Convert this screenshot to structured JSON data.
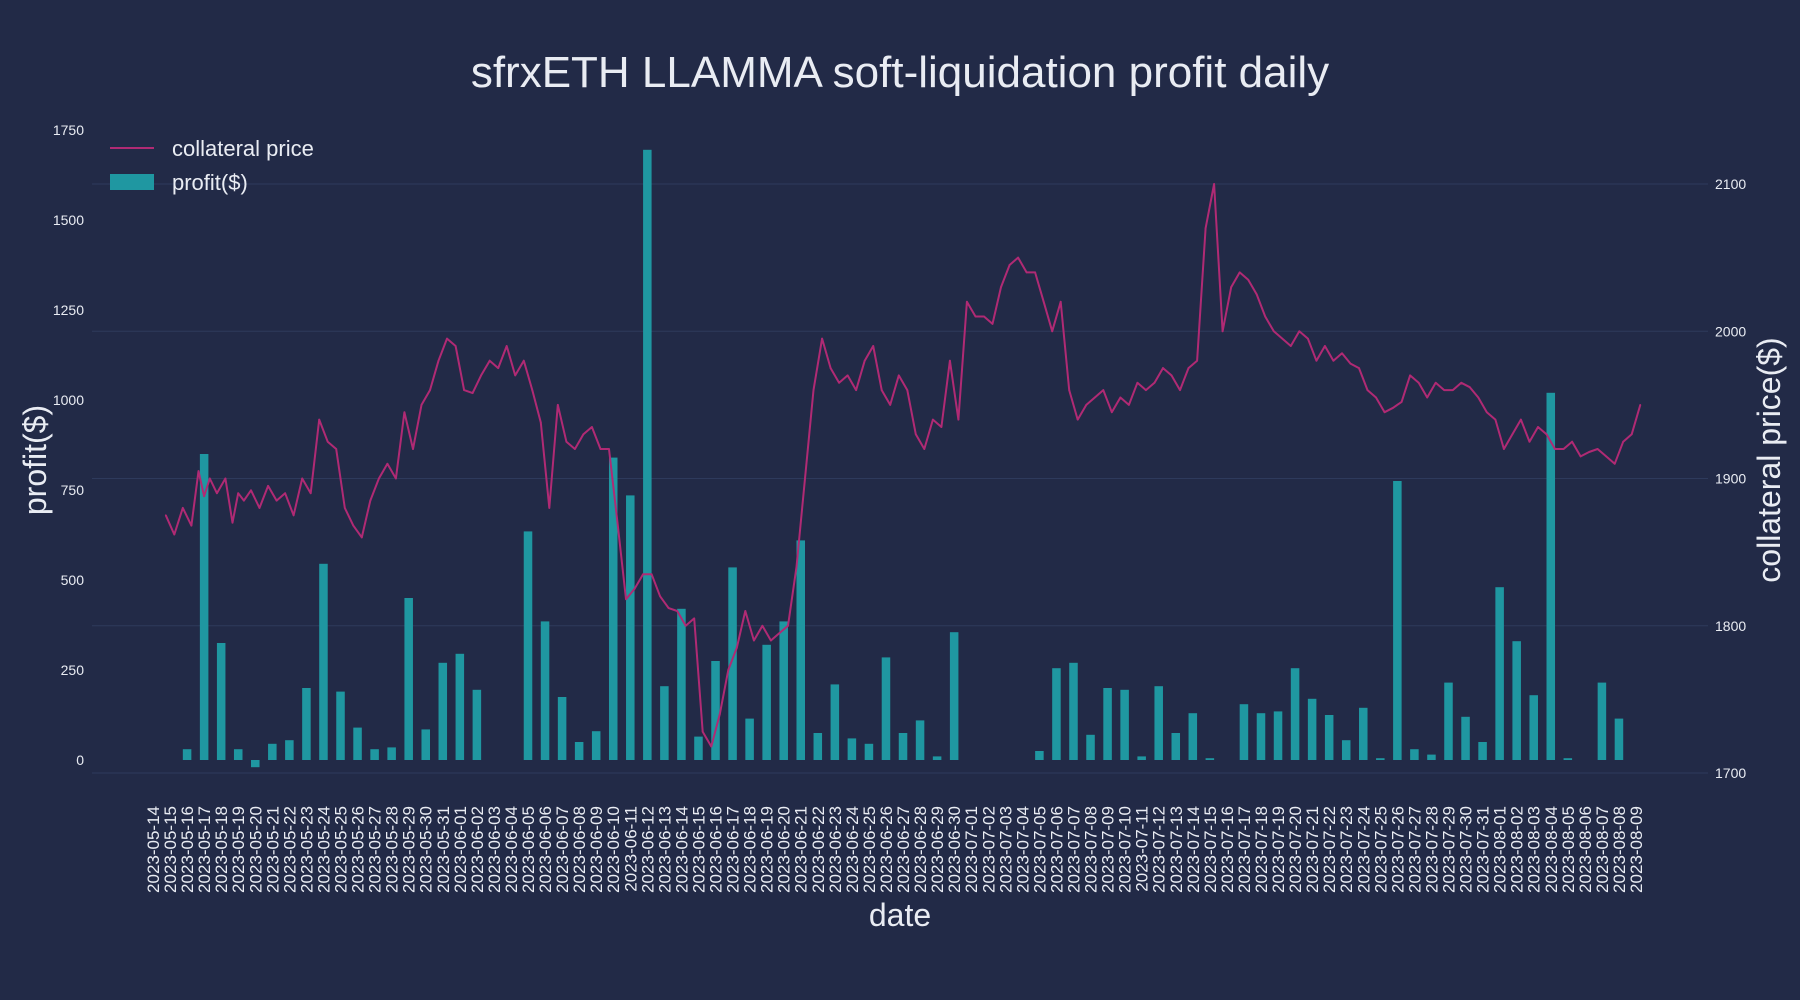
{
  "chart_data": {
    "type": "bar+line",
    "title": "sfrxETH LLAMMA soft-liquidation profit daily",
    "xlabel": "date",
    "ylabel_left": "profit($)",
    "ylabel_right": "collateral price($)",
    "ylim_left": [
      -20,
      1750
    ],
    "ylim_right": [
      1700,
      2150
    ],
    "yticks_left": [
      0,
      250,
      500,
      750,
      1000,
      1250,
      1500,
      1750
    ],
    "yticks_right": [
      1700,
      1800,
      1900,
      2000,
      2100
    ],
    "grid": "horizontal",
    "legend_position": "top-left",
    "colors": {
      "background": "#222a47",
      "bar": "#1f97a1",
      "line": "#b02a74",
      "grid": "#2e3a5c",
      "text": "#e9ecf3"
    },
    "categories": [
      "2023-05-14",
      "2023-05-15",
      "2023-05-16",
      "2023-05-17",
      "2023-05-18",
      "2023-05-19",
      "2023-05-20",
      "2023-05-21",
      "2023-05-22",
      "2023-05-23",
      "2023-05-24",
      "2023-05-25",
      "2023-05-26",
      "2023-05-27",
      "2023-05-28",
      "2023-05-29",
      "2023-05-30",
      "2023-05-31",
      "2023-06-01",
      "2023-06-02",
      "2023-06-03",
      "2023-06-04",
      "2023-06-05",
      "2023-06-06",
      "2023-06-07",
      "2023-06-08",
      "2023-06-09",
      "2023-06-10",
      "2023-06-11",
      "2023-06-12",
      "2023-06-13",
      "2023-06-14",
      "2023-06-15",
      "2023-06-16",
      "2023-06-17",
      "2023-06-18",
      "2023-06-19",
      "2023-06-20",
      "2023-06-21",
      "2023-06-22",
      "2023-06-23",
      "2023-06-24",
      "2023-06-25",
      "2023-06-26",
      "2023-06-27",
      "2023-06-28",
      "2023-06-29",
      "2023-06-30",
      "2023-07-01",
      "2023-07-02",
      "2023-07-03",
      "2023-07-04",
      "2023-07-05",
      "2023-07-06",
      "2023-07-07",
      "2023-07-08",
      "2023-07-09",
      "2023-07-10",
      "2023-07-11",
      "2023-07-12",
      "2023-07-13",
      "2023-07-14",
      "2023-07-15",
      "2023-07-16",
      "2023-07-17",
      "2023-07-18",
      "2023-07-19",
      "2023-07-20",
      "2023-07-21",
      "2023-07-22",
      "2023-07-23",
      "2023-07-24",
      "2023-07-25",
      "2023-07-26",
      "2023-07-27",
      "2023-07-28",
      "2023-07-29",
      "2023-07-30",
      "2023-07-31",
      "2023-08-01",
      "2023-08-02",
      "2023-08-03",
      "2023-08-04",
      "2023-08-05",
      "2023-08-06",
      "2023-08-07",
      "2023-08-08",
      "2023-08-09"
    ],
    "series": [
      {
        "name": "profit($)",
        "kind": "bar",
        "values": [
          0,
          0,
          30,
          850,
          325,
          30,
          -20,
          45,
          55,
          200,
          545,
          190,
          90,
          30,
          35,
          450,
          85,
          270,
          295,
          195,
          0,
          0,
          635,
          385,
          175,
          50,
          80,
          840,
          735,
          1695,
          205,
          420,
          65,
          275,
          535,
          115,
          320,
          385,
          610,
          75,
          210,
          60,
          45,
          285,
          75,
          110,
          10,
          355,
          0,
          0,
          0,
          0,
          25,
          255,
          270,
          70,
          200,
          195,
          10,
          205,
          75,
          130,
          5,
          0,
          155,
          130,
          135,
          255,
          170,
          125,
          55,
          145,
          5,
          775,
          30,
          15,
          215,
          120,
          50,
          480,
          330,
          180,
          1020,
          5,
          0,
          215,
          115,
          0
        ]
      },
      {
        "name": "collateral price",
        "kind": "line",
        "x": [
          "2023-05-15",
          "2023-05-15",
          "2023-05-16",
          "2023-05-16",
          "2023-05-17",
          "2023-05-17",
          "2023-05-17",
          "2023-05-18",
          "2023-05-18",
          "2023-05-19",
          "2023-05-19",
          "2023-05-19",
          "2023-05-20",
          "2023-05-20",
          "2023-05-21",
          "2023-05-21",
          "2023-05-22",
          "2023-05-22",
          "2023-05-23",
          "2023-05-23",
          "2023-05-24",
          "2023-05-24",
          "2023-05-25",
          "2023-05-25",
          "2023-05-26",
          "2023-05-26",
          "2023-05-27",
          "2023-05-27",
          "2023-05-28",
          "2023-05-28",
          "2023-05-29",
          "2023-05-29",
          "2023-05-30",
          "2023-05-30",
          "2023-05-31",
          "2023-05-31",
          "2023-06-01",
          "2023-06-01",
          "2023-06-02",
          "2023-06-02",
          "2023-06-03",
          "2023-06-03",
          "2023-06-04",
          "2023-06-04",
          "2023-06-05",
          "2023-06-05",
          "2023-06-06",
          "2023-06-06",
          "2023-06-07",
          "2023-06-07",
          "2023-06-08",
          "2023-06-08",
          "2023-06-09",
          "2023-06-09",
          "2023-06-10",
          "2023-06-10",
          "2023-06-11",
          "2023-06-11",
          "2023-06-12",
          "2023-06-12",
          "2023-06-13",
          "2023-06-13",
          "2023-06-14",
          "2023-06-14",
          "2023-06-15",
          "2023-06-15",
          "2023-06-16",
          "2023-06-16",
          "2023-06-17",
          "2023-06-17",
          "2023-06-18",
          "2023-06-18",
          "2023-06-19",
          "2023-06-19",
          "2023-06-20",
          "2023-06-20",
          "2023-06-21",
          "2023-06-21",
          "2023-06-22",
          "2023-06-22",
          "2023-06-23",
          "2023-06-23",
          "2023-06-24",
          "2023-06-24",
          "2023-06-25",
          "2023-06-25",
          "2023-06-26",
          "2023-06-26",
          "2023-06-27",
          "2023-06-27",
          "2023-06-28",
          "2023-06-28",
          "2023-06-29",
          "2023-06-29",
          "2023-06-30",
          "2023-06-30",
          "2023-07-01",
          "2023-07-01",
          "2023-07-02",
          "2023-07-02",
          "2023-07-03",
          "2023-07-03",
          "2023-07-04",
          "2023-07-04",
          "2023-07-05",
          "2023-07-05",
          "2023-07-06",
          "2023-07-06",
          "2023-07-07",
          "2023-07-07",
          "2023-07-08",
          "2023-07-08",
          "2023-07-09",
          "2023-07-09",
          "2023-07-10",
          "2023-07-10",
          "2023-07-11",
          "2023-07-11",
          "2023-07-12",
          "2023-07-12",
          "2023-07-13",
          "2023-07-13",
          "2023-07-14",
          "2023-07-14",
          "2023-07-15",
          "2023-07-15",
          "2023-07-16",
          "2023-07-16",
          "2023-07-17",
          "2023-07-17",
          "2023-07-18",
          "2023-07-18",
          "2023-07-19",
          "2023-07-19",
          "2023-07-20",
          "2023-07-20",
          "2023-07-21",
          "2023-07-21",
          "2023-07-22",
          "2023-07-22",
          "2023-07-23",
          "2023-07-23",
          "2023-07-24",
          "2023-07-24",
          "2023-07-25",
          "2023-07-25",
          "2023-07-26",
          "2023-07-26",
          "2023-07-27",
          "2023-07-27",
          "2023-07-28",
          "2023-07-28",
          "2023-07-29",
          "2023-07-29",
          "2023-07-30",
          "2023-07-30",
          "2023-07-31",
          "2023-07-31",
          "2023-08-01",
          "2023-08-01",
          "2023-08-02",
          "2023-08-02",
          "2023-08-03",
          "2023-08-03",
          "2023-08-04",
          "2023-08-04",
          "2023-08-05",
          "2023-08-05",
          "2023-08-06",
          "2023-08-06",
          "2023-08-07",
          "2023-08-07",
          "2023-08-08",
          "2023-08-08",
          "2023-08-09",
          "2023-08-09"
        ],
        "values": [
          1875,
          1862,
          1880,
          1868,
          1905,
          1888,
          1900,
          1890,
          1900,
          1870,
          1890,
          1885,
          1892,
          1880,
          1895,
          1885,
          1890,
          1875,
          1900,
          1890,
          1940,
          1925,
          1920,
          1880,
          1868,
          1860,
          1885,
          1900,
          1910,
          1900,
          1945,
          1920,
          1950,
          1960,
          1980,
          1995,
          1990,
          1960,
          1958,
          1970,
          1980,
          1975,
          1990,
          1970,
          1980,
          1960,
          1938,
          1880,
          1950,
          1925,
          1920,
          1930,
          1935,
          1920,
          1920,
          1870,
          1818,
          1825,
          1835,
          1835,
          1820,
          1812,
          1810,
          1800,
          1805,
          1728,
          1718,
          1740,
          1770,
          1785,
          1810,
          1790,
          1800,
          1790,
          1795,
          1800,
          1840,
          1900,
          1960,
          1995,
          1975,
          1965,
          1970,
          1960,
          1980,
          1990,
          1960,
          1950,
          1970,
          1960,
          1930,
          1920,
          1940,
          1935,
          1980,
          1940,
          2020,
          2010,
          2010,
          2005,
          2030,
          2045,
          2050,
          2040,
          2040,
          2020,
          2000,
          2020,
          1960,
          1940,
          1950,
          1955,
          1960,
          1945,
          1955,
          1950,
          1965,
          1960,
          1965,
          1975,
          1970,
          1960,
          1975,
          1980,
          2070,
          2100,
          2000,
          2030,
          2040,
          2035,
          2025,
          2010,
          2000,
          1995,
          1990,
          2000,
          1995,
          1980,
          1990,
          1980,
          1985,
          1978,
          1975,
          1960,
          1955,
          1945,
          1948,
          1952,
          1970,
          1965,
          1955,
          1965,
          1960,
          1960,
          1965,
          1962,
          1955,
          1945,
          1940,
          1920,
          1930,
          1940,
          1925,
          1935,
          1930,
          1920,
          1920,
          1925,
          1915,
          1918,
          1920,
          1915,
          1910,
          1925,
          1930,
          1950
        ]
      }
    ]
  }
}
